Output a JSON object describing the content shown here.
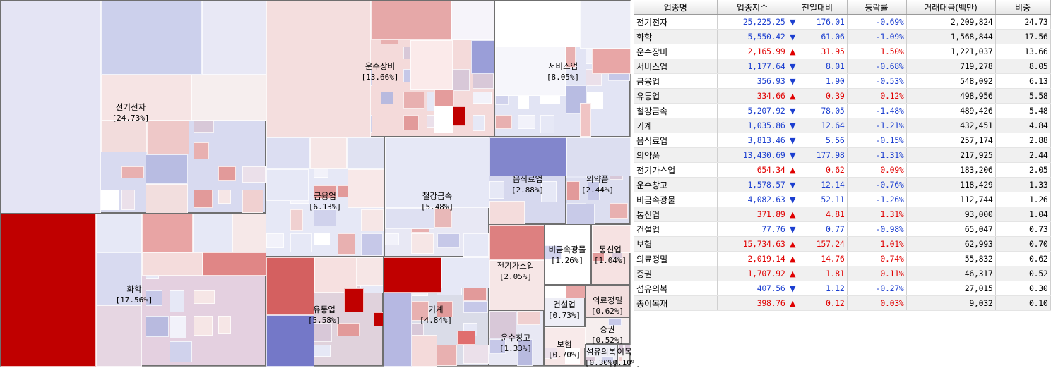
{
  "colors": {
    "up": "#e00000",
    "down": "#1c3fd0",
    "strong_up": "#c00000",
    "strong_down": "#7276c8"
  },
  "treemap": {
    "sectors": [
      {
        "id": "elec",
        "name": "전기전자",
        "pct": "[24.73%]"
      },
      {
        "id": "chem",
        "name": "화학",
        "pct": "[17.56%]"
      },
      {
        "id": "trans",
        "name": "운수장비",
        "pct": "[13.66%]"
      },
      {
        "id": "svc",
        "name": "서비스업",
        "pct": "[8.05%]"
      },
      {
        "id": "fin",
        "name": "금융업",
        "pct": "[6.13%]"
      },
      {
        "id": "steel",
        "name": "철강금속",
        "pct": "[5.48%]"
      },
      {
        "id": "food",
        "name": "음식료업",
        "pct": "[2.88%]"
      },
      {
        "id": "pharma",
        "name": "의약품",
        "pct": "[2.44%]"
      },
      {
        "id": "retail",
        "name": "유통업",
        "pct": "[5.58%]"
      },
      {
        "id": "mach",
        "name": "기계",
        "pct": "[4.84%]"
      },
      {
        "id": "gas",
        "name": "전기가스업",
        "pct": "[2.05%]"
      },
      {
        "id": "nonmetal",
        "name": "비금속광물",
        "pct": "[1.26%]"
      },
      {
        "id": "telecom",
        "name": "통신업",
        "pct": "[1.04%]"
      },
      {
        "id": "constr",
        "name": "건설업",
        "pct": "[0.73%]"
      },
      {
        "id": "medical",
        "name": "의료정밀",
        "pct": "[0.62%]"
      },
      {
        "id": "warehouse",
        "name": "운수창고",
        "pct": "[1.33%]"
      },
      {
        "id": "sec",
        "name": "증권",
        "pct": "[0.52%]"
      },
      {
        "id": "insure",
        "name": "보험",
        "pct": "[0.70%]"
      },
      {
        "id": "textile",
        "name": "섬유의복",
        "pct": "[0.30%]"
      },
      {
        "id": "paper",
        "name": "이목",
        "pct": "[0.10%]"
      }
    ]
  },
  "table": {
    "headers": [
      "업종명",
      "업종지수",
      "전일대비",
      "등락률",
      "거래대금(백만)",
      "비중"
    ],
    "rows": [
      {
        "name": "전기전자",
        "index": "25,225.25",
        "dir": "down",
        "change": "176.01",
        "rate": "-0.69%",
        "amount": "2,209,824",
        "weight": "24.73"
      },
      {
        "name": "화학",
        "index": "5,550.42",
        "dir": "down",
        "change": "61.06",
        "rate": "-1.09%",
        "amount": "1,568,844",
        "weight": "17.56"
      },
      {
        "name": "운수장비",
        "index": "2,165.99",
        "dir": "up",
        "change": "31.95",
        "rate": "1.50%",
        "amount": "1,221,037",
        "weight": "13.66"
      },
      {
        "name": "서비스업",
        "index": "1,177.64",
        "dir": "down",
        "change": "8.01",
        "rate": "-0.68%",
        "amount": "719,278",
        "weight": "8.05"
      },
      {
        "name": "금융업",
        "index": "356.93",
        "dir": "down",
        "change": "1.90",
        "rate": "-0.53%",
        "amount": "548,092",
        "weight": "6.13"
      },
      {
        "name": "유통업",
        "index": "334.66",
        "dir": "up",
        "change": "0.39",
        "rate": "0.12%",
        "amount": "498,956",
        "weight": "5.58"
      },
      {
        "name": "철강금속",
        "index": "5,207.92",
        "dir": "down",
        "change": "78.05",
        "rate": "-1.48%",
        "amount": "489,426",
        "weight": "5.48"
      },
      {
        "name": "기계",
        "index": "1,035.86",
        "dir": "down",
        "change": "12.64",
        "rate": "-1.21%",
        "amount": "432,451",
        "weight": "4.84"
      },
      {
        "name": "음식료업",
        "index": "3,813.46",
        "dir": "down",
        "change": "5.56",
        "rate": "-0.15%",
        "amount": "257,174",
        "weight": "2.88"
      },
      {
        "name": "의약품",
        "index": "13,430.69",
        "dir": "down",
        "change": "177.98",
        "rate": "-1.31%",
        "amount": "217,925",
        "weight": "2.44"
      },
      {
        "name": "전기가스업",
        "index": "654.34",
        "dir": "up",
        "change": "0.62",
        "rate": "0.09%",
        "amount": "183,206",
        "weight": "2.05"
      },
      {
        "name": "운수창고",
        "index": "1,578.57",
        "dir": "down",
        "change": "12.14",
        "rate": "-0.76%",
        "amount": "118,429",
        "weight": "1.33"
      },
      {
        "name": "비금속광물",
        "index": "4,082.63",
        "dir": "down",
        "change": "52.11",
        "rate": "-1.26%",
        "amount": "112,744",
        "weight": "1.26"
      },
      {
        "name": "통신업",
        "index": "371.89",
        "dir": "up",
        "change": "4.81",
        "rate": "1.31%",
        "amount": "93,000",
        "weight": "1.04"
      },
      {
        "name": "건설업",
        "index": "77.76",
        "dir": "down",
        "change": "0.77",
        "rate": "-0.98%",
        "amount": "65,047",
        "weight": "0.73"
      },
      {
        "name": "보험",
        "index": "15,734.63",
        "dir": "up",
        "change": "157.24",
        "rate": "1.01%",
        "amount": "62,993",
        "weight": "0.70"
      },
      {
        "name": "의료정밀",
        "index": "2,019.14",
        "dir": "up",
        "change": "14.76",
        "rate": "0.74%",
        "amount": "55,832",
        "weight": "0.62"
      },
      {
        "name": "증권",
        "index": "1,707.92",
        "dir": "up",
        "change": "1.81",
        "rate": "0.11%",
        "amount": "46,317",
        "weight": "0.52"
      },
      {
        "name": "섬유의복",
        "index": "407.56",
        "dir": "down",
        "change": "1.12",
        "rate": "-0.27%",
        "amount": "27,015",
        "weight": "0.30"
      },
      {
        "name": "종이목재",
        "index": "398.76",
        "dir": "up",
        "change": "0.12",
        "rate": "0.03%",
        "amount": "9,032",
        "weight": "0.10"
      }
    ]
  }
}
